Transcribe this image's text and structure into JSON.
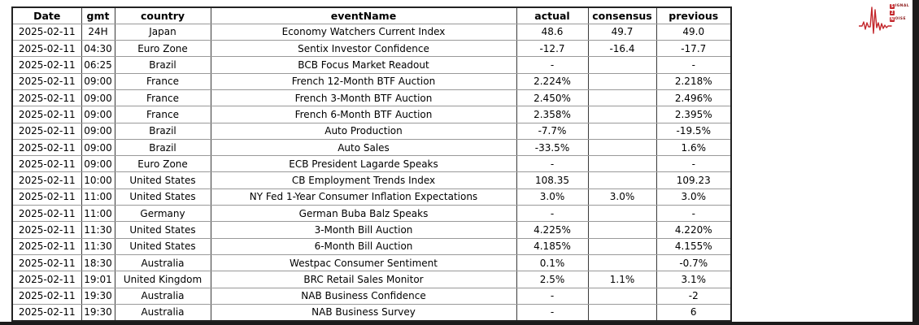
{
  "chart_data": {
    "type": "table",
    "title": "",
    "columns": [
      "Date",
      "gmt",
      "country",
      "eventName",
      "actual",
      "consensus",
      "previous"
    ],
    "rows": [
      [
        "2025-02-11",
        "24H",
        "Japan",
        "Economy Watchers Current Index",
        "48.6",
        "49.7",
        "49.0"
      ],
      [
        "2025-02-11",
        "04:30",
        "Euro Zone",
        "Sentix Investor Confidence",
        "-12.7",
        "-16.4",
        "-17.7"
      ],
      [
        "2025-02-11",
        "06:25",
        "Brazil",
        "BCB Focus Market Readout",
        "-",
        "",
        "-"
      ],
      [
        "2025-02-11",
        "09:00",
        "France",
        "French 12-Month BTF Auction",
        "2.224%",
        "",
        "2.218%"
      ],
      [
        "2025-02-11",
        "09:00",
        "France",
        "French 3-Month BTF Auction",
        "2.450%",
        "",
        "2.496%"
      ],
      [
        "2025-02-11",
        "09:00",
        "France",
        "French 6-Month BTF Auction",
        "2.358%",
        "",
        "2.395%"
      ],
      [
        "2025-02-11",
        "09:00",
        "Brazil",
        "Auto Production",
        "-7.7%",
        "",
        "-19.5%"
      ],
      [
        "2025-02-11",
        "09:00",
        "Brazil",
        "Auto Sales",
        "-33.5%",
        "",
        "1.6%"
      ],
      [
        "2025-02-11",
        "09:00",
        "Euro Zone",
        "ECB President Lagarde Speaks",
        "-",
        "",
        "-"
      ],
      [
        "2025-02-11",
        "10:00",
        "United States",
        "CB Employment Trends Index",
        "108.35",
        "",
        "109.23"
      ],
      [
        "2025-02-11",
        "11:00",
        "United States",
        "NY Fed 1-Year Consumer Inflation Expectations",
        "3.0%",
        "3.0%",
        "3.0%"
      ],
      [
        "2025-02-11",
        "11:00",
        "Germany",
        "German Buba Balz Speaks",
        "-",
        "",
        "-"
      ],
      [
        "2025-02-11",
        "11:30",
        "United States",
        "3-Month Bill Auction",
        "4.225%",
        "",
        "4.220%"
      ],
      [
        "2025-02-11",
        "11:30",
        "United States",
        "6-Month Bill Auction",
        "4.185%",
        "",
        "4.155%"
      ],
      [
        "2025-02-11",
        "18:30",
        "Australia",
        "Westpac Consumer Sentiment",
        "0.1%",
        "",
        "-0.7%"
      ],
      [
        "2025-02-11",
        "19:01",
        "United Kingdom",
        "BRC Retail Sales Monitor",
        "2.5%",
        "1.1%",
        "3.1%"
      ],
      [
        "2025-02-11",
        "19:30",
        "Australia",
        "NAB Business Confidence",
        "-",
        "",
        "-2"
      ],
      [
        "2025-02-11",
        "19:30",
        "Australia",
        "NAB Business Survey",
        "-",
        "",
        "6"
      ]
    ]
  },
  "logo": {
    "line1_initial": "S",
    "line1_rest": "IGNAL",
    "line2_initial": "2",
    "line2_rest": "",
    "line3_initial": "N",
    "line3_rest": "OISE"
  },
  "colors": {
    "logo_red": "#c3262b",
    "logo_maroon": "#8b1a1a",
    "edge_dark": "#1b1b1b",
    "border_dark": "#3a3a3a",
    "border_light": "#999999"
  }
}
